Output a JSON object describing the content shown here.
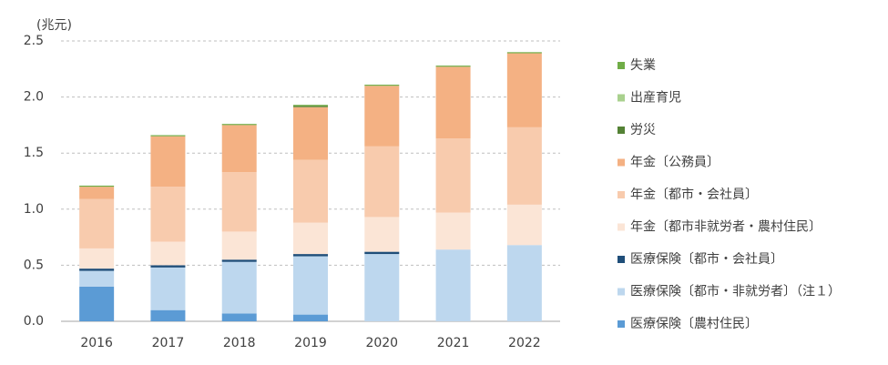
{
  "chart_data": {
    "type": "stacked_bar",
    "y_label": "(兆元)",
    "categories": [
      "2016",
      "2017",
      "2018",
      "2019",
      "2020",
      "2021",
      "2022"
    ],
    "series": [
      {
        "name": "医療保険〔農村住民〕",
        "color": "#5b9bd5",
        "values": [
          0.31,
          0.1,
          0.07,
          0.06,
          0,
          0,
          0
        ]
      },
      {
        "name": "医療保険〔都市・非就労者〕（注１）",
        "color": "#bdd7ee",
        "values": [
          0.14,
          0.38,
          0.46,
          0.52,
          0.6,
          0.64,
          0.68
        ]
      },
      {
        "name": "医療保険〔都市・会社員〕",
        "color": "#1f4e79",
        "values": [
          0.02,
          0.02,
          0.02,
          0.02,
          0.02,
          0,
          0
        ]
      },
      {
        "name": "年金〔都市非就労者・農村住民〕",
        "color": "#fbe5d6",
        "values": [
          0.18,
          0.21,
          0.25,
          0.28,
          0.31,
          0.33,
          0.36
        ]
      },
      {
        "name": "年金〔都市・会社員〕",
        "color": "#f8cbad",
        "values": [
          0.44,
          0.49,
          0.53,
          0.56,
          0.63,
          0.66,
          0.69
        ]
      },
      {
        "name": "年金〔公務員〕",
        "color": "#f4b183",
        "values": [
          0.11,
          0.45,
          0.42,
          0.47,
          0.54,
          0.64,
          0.66
        ]
      },
      {
        "name": "労災",
        "color": "#548235",
        "values": [
          0,
          0,
          0,
          0.01,
          0,
          0,
          0
        ]
      },
      {
        "name": "出産育児",
        "color": "#a9d18e",
        "values": [
          0,
          0,
          0,
          0,
          0,
          0,
          0
        ]
      },
      {
        "name": "失業",
        "color": "#70ad47",
        "values": [
          0.01,
          0.01,
          0.01,
          0.01,
          0.01,
          0.01,
          0.01
        ]
      }
    ],
    "ylim": [
      0,
      2.5
    ],
    "yticks": [
      {
        "value": 0,
        "label": "0.0"
      },
      {
        "value": 0.5,
        "label": "0.5"
      },
      {
        "value": 1,
        "label": "1.0"
      },
      {
        "value": 1.5,
        "label": "1.5"
      },
      {
        "value": 2,
        "label": "2.0"
      },
      {
        "value": 2.5,
        "label": "2.5"
      }
    ],
    "grid": true
  }
}
